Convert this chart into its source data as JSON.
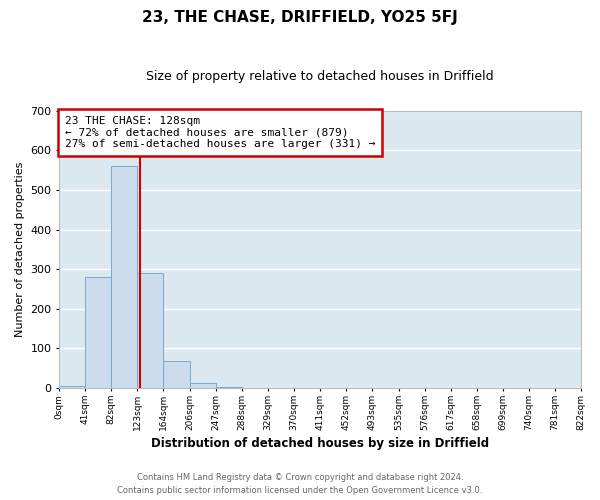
{
  "title": "23, THE CHASE, DRIFFIELD, YO25 5FJ",
  "subtitle": "Size of property relative to detached houses in Driffield",
  "xlabel": "Distribution of detached houses by size in Driffield",
  "ylabel": "Number of detached properties",
  "bar_color": "#ccdcec",
  "bar_edge_color": "#7aaac8",
  "background_color": "#dce8f0",
  "grid_color": "#ffffff",
  "fig_background": "#ffffff",
  "bin_edges": [
    0,
    41,
    82,
    123,
    164,
    206,
    247,
    288,
    329,
    370,
    411,
    452,
    493,
    535,
    576,
    617,
    658,
    699,
    740,
    781,
    822
  ],
  "bar_heights": [
    5,
    280,
    560,
    290,
    68,
    14,
    4,
    0,
    0,
    0,
    0,
    0,
    0,
    0,
    0,
    0,
    0,
    0,
    0,
    0
  ],
  "tick_labels": [
    "0sqm",
    "41sqm",
    "82sqm",
    "123sqm",
    "164sqm",
    "206sqm",
    "247sqm",
    "288sqm",
    "329sqm",
    "370sqm",
    "411sqm",
    "452sqm",
    "493sqm",
    "535sqm",
    "576sqm",
    "617sqm",
    "658sqm",
    "699sqm",
    "740sqm",
    "781sqm",
    "822sqm"
  ],
  "ylim": [
    0,
    700
  ],
  "yticks": [
    0,
    100,
    200,
    300,
    400,
    500,
    600,
    700
  ],
  "red_line_x": 128,
  "annotation_box_text": "23 THE CHASE: 128sqm\n← 72% of detached houses are smaller (879)\n27% of semi-detached houses are larger (331) →",
  "annotation_box_color": "#ffffff",
  "annotation_box_edge_color": "#cc0000",
  "footer_line1": "Contains HM Land Registry data © Crown copyright and database right 2024.",
  "footer_line2": "Contains public sector information licensed under the Open Government Licence v3.0."
}
